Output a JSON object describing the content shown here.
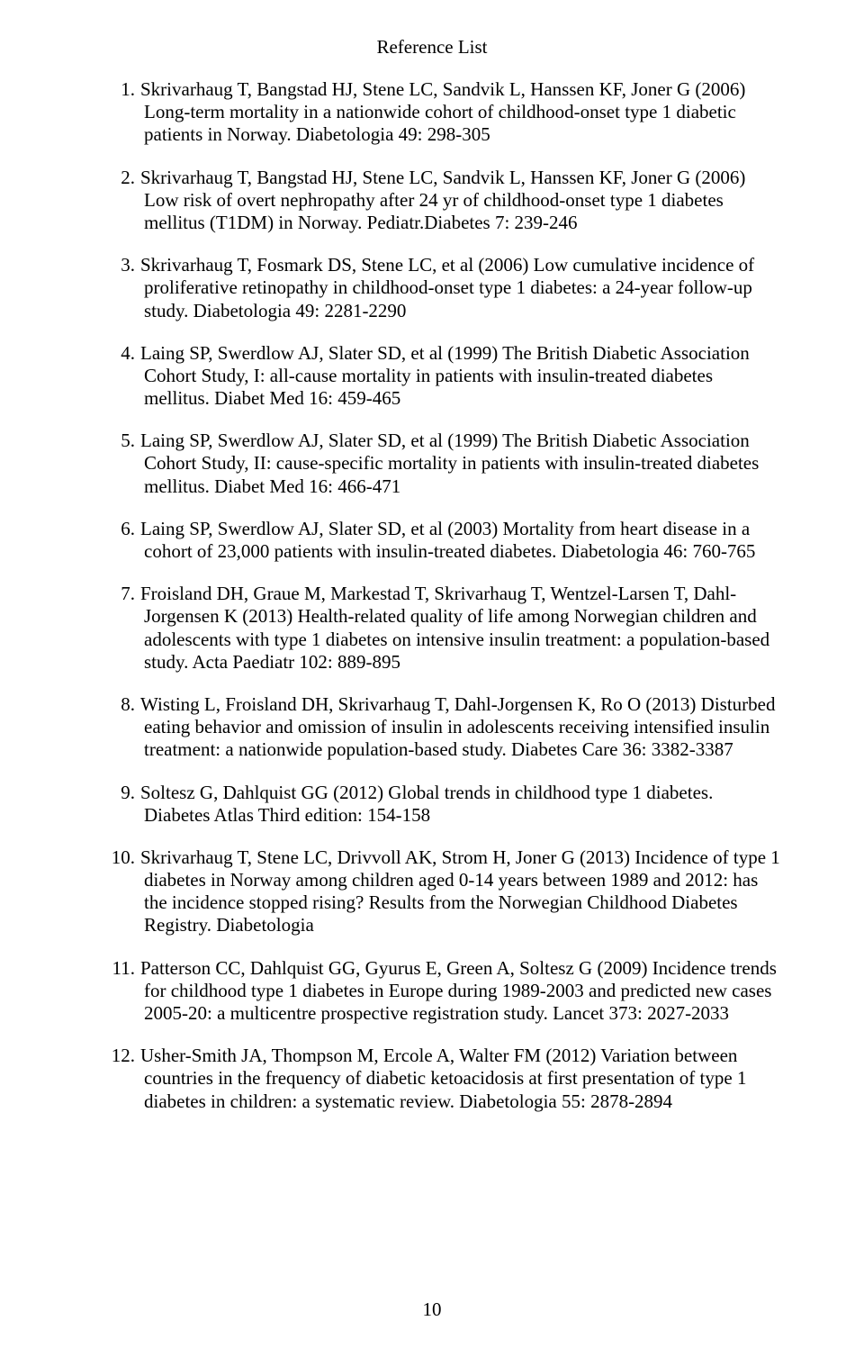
{
  "page": {
    "title": "Reference List",
    "page_number": "10",
    "font_family": "Times New Roman",
    "title_fontsize": 21,
    "body_fontsize": 21,
    "text_color": "#000000",
    "background_color": "#ffffff"
  },
  "references": [
    {
      "n": "1.",
      "text": "Skrivarhaug T, Bangstad HJ, Stene LC, Sandvik L, Hanssen KF, Joner G (2006) Long-term mortality in a nationwide cohort of childhood-onset type 1 diabetic patients in Norway.  Diabetologia 49: 298-305"
    },
    {
      "n": "2.",
      "text": "Skrivarhaug T, Bangstad HJ, Stene LC, Sandvik L, Hanssen KF, Joner G (2006) Low risk of overt nephropathy after 24 yr of childhood-onset type 1 diabetes mellitus (T1DM) in Norway.  Pediatr.Diabetes 7: 239-246"
    },
    {
      "n": "3.",
      "text": "Skrivarhaug T, Fosmark DS, Stene LC, et al (2006) Low cumulative incidence of proliferative retinopathy in childhood-onset type 1 diabetes: a 24-year follow-up study.  Diabetologia 49: 2281-2290"
    },
    {
      "n": "4.",
      "text": "Laing SP, Swerdlow AJ, Slater SD, et al (1999) The British Diabetic Association Cohort Study, I: all-cause mortality in patients with insulin-treated diabetes mellitus.  Diabet Med 16: 459-465"
    },
    {
      "n": "5.",
      "text": "Laing SP, Swerdlow AJ, Slater SD, et al (1999) The British Diabetic Association Cohort Study, II: cause-specific mortality in patients with insulin-treated diabetes mellitus.  Diabet Med 16: 466-471"
    },
    {
      "n": "6.",
      "text": "Laing SP, Swerdlow AJ, Slater SD, et al (2003) Mortality from heart disease in a cohort of 23,000 patients with insulin-treated diabetes.  Diabetologia 46: 760-765"
    },
    {
      "n": "7.",
      "text": "Froisland DH, Graue M, Markestad T, Skrivarhaug T, Wentzel-Larsen T, Dahl-Jorgensen K (2013) Health-related quality of life among Norwegian children and adolescents with type 1 diabetes on intensive insulin treatment: a population-based study.  Acta Paediatr 102: 889-895"
    },
    {
      "n": "8.",
      "text": "Wisting L, Froisland DH, Skrivarhaug T, Dahl-Jorgensen K, Ro O (2013) Disturbed eating behavior and omission of insulin in adolescents receiving intensified insulin treatment: a nationwide population-based study.  Diabetes Care 36: 3382-3387"
    },
    {
      "n": "9.",
      "text": "Soltesz G, Dahlquist GG (2012) Global trends in childhood type 1 diabetes.  Diabetes Atlas Third edition: 154-158"
    },
    {
      "n": "10.",
      "text": "Skrivarhaug T, Stene LC, Drivvoll AK, Strom H, Joner G (2013) Incidence of type 1 diabetes in Norway among children aged 0-14 years between 1989 and 2012: has the incidence stopped rising? Results from the Norwegian Childhood Diabetes Registry.  Diabetologia"
    },
    {
      "n": "11.",
      "text": "Patterson CC, Dahlquist GG, Gyurus E, Green A, Soltesz G (2009) Incidence trends for childhood type 1 diabetes in Europe during 1989-2003 and predicted new cases 2005-20: a multicentre prospective registration study.  Lancet 373: 2027-2033"
    },
    {
      "n": "12.",
      "text": "Usher-Smith JA, Thompson M, Ercole A, Walter FM (2012) Variation between countries in the frequency of diabetic ketoacidosis at first presentation of type 1 diabetes in children: a systematic review.  Diabetologia 55: 2878-2894"
    }
  ]
}
